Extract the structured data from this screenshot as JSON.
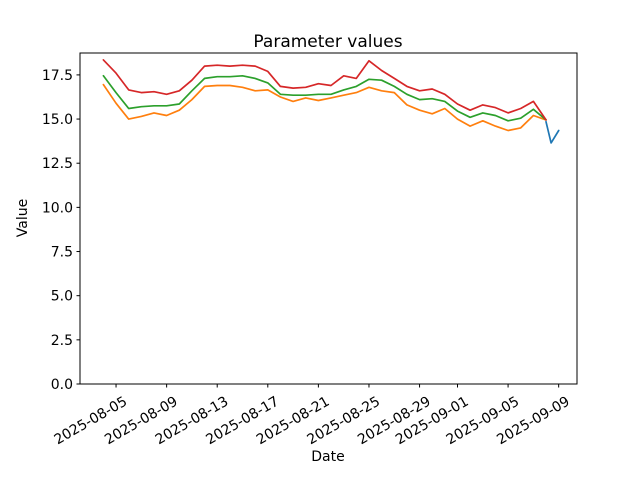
{
  "chart_data": {
    "type": "line",
    "title": "Parameter values",
    "xlabel": "Date",
    "ylabel": "Value",
    "x_unit": "days since 2025-08-04 (daily samples)",
    "x_base_date": "2025-08-04",
    "xlim": [
      -1.85,
      37.45
    ],
    "ylim": [
      0,
      18.74
    ],
    "grid": false,
    "legend": "none",
    "yticks": [
      {
        "v": 0,
        "label": "0.0"
      },
      {
        "v": 2.5,
        "label": "2.5"
      },
      {
        "v": 5,
        "label": "5.0"
      },
      {
        "v": 7.5,
        "label": "7.5"
      },
      {
        "v": 10,
        "label": "10.0"
      },
      {
        "v": 12.5,
        "label": "12.5"
      },
      {
        "v": 15,
        "label": "15.0"
      },
      {
        "v": 17.5,
        "label": "17.5"
      }
    ],
    "xticks": [
      {
        "d": 1,
        "label": "2025-08-05"
      },
      {
        "d": 5,
        "label": "2025-08-09"
      },
      {
        "d": 9,
        "label": "2025-08-13"
      },
      {
        "d": 13,
        "label": "2025-08-17"
      },
      {
        "d": 17,
        "label": "2025-08-21"
      },
      {
        "d": 21,
        "label": "2025-08-25"
      },
      {
        "d": 25,
        "label": "2025-08-29"
      },
      {
        "d": 28,
        "label": "2025-09-01"
      },
      {
        "d": 32,
        "label": "2025-09-05"
      },
      {
        "d": 36,
        "label": "2025-09-09"
      }
    ],
    "series": [
      {
        "name": "orange-series",
        "color": "#ff7f0e",
        "x0": 0,
        "x_step": 1,
        "values": [
          16.95,
          15.9,
          15.0,
          15.15,
          15.35,
          15.2,
          15.5,
          16.1,
          16.85,
          16.9,
          16.9,
          16.8,
          16.6,
          16.65,
          16.25,
          16.0,
          16.2,
          16.05,
          16.2,
          16.35,
          16.5,
          16.8,
          16.6,
          16.5,
          15.8,
          15.5,
          15.3,
          15.6,
          15.0,
          14.6,
          14.9,
          14.6,
          14.35,
          14.5,
          15.2,
          14.95
        ]
      },
      {
        "name": "green-series",
        "color": "#2ca02c",
        "x0": 0,
        "x_step": 1,
        "values": [
          17.45,
          16.5,
          15.6,
          15.7,
          15.75,
          15.75,
          15.85,
          16.6,
          17.3,
          17.4,
          17.4,
          17.45,
          17.3,
          17.05,
          16.4,
          16.35,
          16.35,
          16.4,
          16.4,
          16.65,
          16.85,
          17.25,
          17.2,
          16.85,
          16.4,
          16.1,
          16.15,
          16.0,
          15.45,
          15.1,
          15.35,
          15.2,
          14.9,
          15.05,
          15.55,
          14.95
        ]
      },
      {
        "name": "red-series",
        "color": "#d62728",
        "x0": 0,
        "x_step": 1,
        "values": [
          18.35,
          17.6,
          16.65,
          16.5,
          16.55,
          16.4,
          16.6,
          17.2,
          18.0,
          18.05,
          18.0,
          18.05,
          18.0,
          17.7,
          16.85,
          16.75,
          16.8,
          17.0,
          16.9,
          17.45,
          17.3,
          18.3,
          17.75,
          17.3,
          16.85,
          16.6,
          16.7,
          16.4,
          15.85,
          15.5,
          15.8,
          15.65,
          15.35,
          15.6,
          16.0,
          14.95
        ]
      },
      {
        "name": "blue-series",
        "color": "#1f77b4",
        "points": [
          [
            35,
            14.85
          ],
          [
            35.4,
            13.65
          ],
          [
            36,
            14.35
          ]
        ]
      }
    ]
  }
}
